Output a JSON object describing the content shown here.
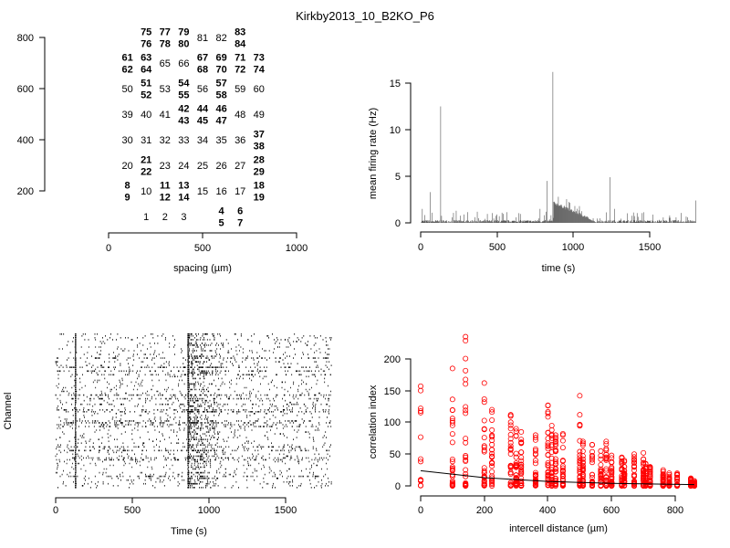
{
  "title": "Kirkby2013_10_B2KO_P6",
  "chart_data": [
    {
      "type": "scatter",
      "name": "electrode layout",
      "xlabel": "spacing (µm)",
      "xlim": [
        0,
        1000
      ],
      "xticks": [
        "0",
        "500",
        "1000"
      ],
      "ylim": [
        200,
        800
      ],
      "yticks": [
        "200",
        "400",
        "600",
        "800"
      ],
      "channels": [
        {
          "ids": [
            "1"
          ],
          "x": 200,
          "y": 100
        },
        {
          "ids": [
            "2"
          ],
          "x": 300,
          "y": 100
        },
        {
          "ids": [
            "3"
          ],
          "x": 400,
          "y": 100
        },
        {
          "ids": [
            "4",
            "5"
          ],
          "x": 600,
          "y": 100
        },
        {
          "ids": [
            "6",
            "7"
          ],
          "x": 700,
          "y": 100
        },
        {
          "ids": [
            "8",
            "9"
          ],
          "x": 100,
          "y": 200
        },
        {
          "ids": [
            "10"
          ],
          "x": 200,
          "y": 200
        },
        {
          "ids": [
            "11",
            "12"
          ],
          "x": 300,
          "y": 200
        },
        {
          "ids": [
            "13",
            "14"
          ],
          "x": 400,
          "y": 200
        },
        {
          "ids": [
            "15"
          ],
          "x": 500,
          "y": 200
        },
        {
          "ids": [
            "16"
          ],
          "x": 600,
          "y": 200
        },
        {
          "ids": [
            "17"
          ],
          "x": 700,
          "y": 200
        },
        {
          "ids": [
            "18",
            "19"
          ],
          "x": 800,
          "y": 200
        },
        {
          "ids": [
            "20"
          ],
          "x": 100,
          "y": 300
        },
        {
          "ids": [
            "21",
            "22"
          ],
          "x": 200,
          "y": 300
        },
        {
          "ids": [
            "23"
          ],
          "x": 300,
          "y": 300
        },
        {
          "ids": [
            "24"
          ],
          "x": 400,
          "y": 300
        },
        {
          "ids": [
            "25"
          ],
          "x": 500,
          "y": 300
        },
        {
          "ids": [
            "26"
          ],
          "x": 600,
          "y": 300
        },
        {
          "ids": [
            "27"
          ],
          "x": 700,
          "y": 300
        },
        {
          "ids": [
            "28",
            "29"
          ],
          "x": 800,
          "y": 300
        },
        {
          "ids": [
            "30"
          ],
          "x": 100,
          "y": 400
        },
        {
          "ids": [
            "31"
          ],
          "x": 200,
          "y": 400
        },
        {
          "ids": [
            "32"
          ],
          "x": 300,
          "y": 400
        },
        {
          "ids": [
            "33"
          ],
          "x": 400,
          "y": 400
        },
        {
          "ids": [
            "34"
          ],
          "x": 500,
          "y": 400
        },
        {
          "ids": [
            "35"
          ],
          "x": 600,
          "y": 400
        },
        {
          "ids": [
            "36"
          ],
          "x": 700,
          "y": 400
        },
        {
          "ids": [
            "37",
            "38"
          ],
          "x": 800,
          "y": 400
        },
        {
          "ids": [
            "39"
          ],
          "x": 100,
          "y": 500
        },
        {
          "ids": [
            "40"
          ],
          "x": 200,
          "y": 500
        },
        {
          "ids": [
            "41"
          ],
          "x": 300,
          "y": 500
        },
        {
          "ids": [
            "42",
            "43"
          ],
          "x": 400,
          "y": 500
        },
        {
          "ids": [
            "44",
            "45"
          ],
          "x": 500,
          "y": 500
        },
        {
          "ids": [
            "46",
            "47"
          ],
          "x": 600,
          "y": 500
        },
        {
          "ids": [
            "48"
          ],
          "x": 700,
          "y": 500
        },
        {
          "ids": [
            "49"
          ],
          "x": 800,
          "y": 500
        },
        {
          "ids": [
            "50"
          ],
          "x": 100,
          "y": 600
        },
        {
          "ids": [
            "51",
            "52"
          ],
          "x": 200,
          "y": 600
        },
        {
          "ids": [
            "53"
          ],
          "x": 300,
          "y": 600
        },
        {
          "ids": [
            "54",
            "55"
          ],
          "x": 400,
          "y": 600
        },
        {
          "ids": [
            "56"
          ],
          "x": 500,
          "y": 600
        },
        {
          "ids": [
            "57",
            "58"
          ],
          "x": 600,
          "y": 600
        },
        {
          "ids": [
            "59"
          ],
          "x": 700,
          "y": 600
        },
        {
          "ids": [
            "60"
          ],
          "x": 800,
          "y": 600
        },
        {
          "ids": [
            "61",
            "62"
          ],
          "x": 100,
          "y": 700
        },
        {
          "ids": [
            "63",
            "64"
          ],
          "x": 200,
          "y": 700
        },
        {
          "ids": [
            "65"
          ],
          "x": 300,
          "y": 700
        },
        {
          "ids": [
            "66"
          ],
          "x": 400,
          "y": 700
        },
        {
          "ids": [
            "67",
            "68"
          ],
          "x": 500,
          "y": 700
        },
        {
          "ids": [
            "69",
            "70"
          ],
          "x": 600,
          "y": 700
        },
        {
          "ids": [
            "71",
            "72"
          ],
          "x": 700,
          "y": 700
        },
        {
          "ids": [
            "73",
            "74"
          ],
          "x": 800,
          "y": 700
        },
        {
          "ids": [
            "75",
            "76"
          ],
          "x": 200,
          "y": 800
        },
        {
          "ids": [
            "77",
            "78"
          ],
          "x": 300,
          "y": 800
        },
        {
          "ids": [
            "79",
            "80"
          ],
          "x": 400,
          "y": 800
        },
        {
          "ids": [
            "81"
          ],
          "x": 500,
          "y": 800
        },
        {
          "ids": [
            "82"
          ],
          "x": 600,
          "y": 800
        },
        {
          "ids": [
            "83",
            "84"
          ],
          "x": 700,
          "y": 800
        }
      ]
    },
    {
      "type": "area",
      "name": "mean firing rate",
      "xlabel": "time (s)",
      "ylabel": "mean firing rate (Hz)",
      "xlim": [
        0,
        1800
      ],
      "xticks": [
        "0",
        "500",
        "1000",
        "1500"
      ],
      "ylim": [
        0,
        16
      ],
      "yticks": [
        "0",
        "5",
        "10",
        "15"
      ],
      "color": "#555555",
      "peaks": [
        [
          10,
          1.5
        ],
        [
          60,
          3.3
        ],
        [
          130,
          12.5
        ],
        [
          230,
          1.3
        ],
        [
          780,
          1.5
        ],
        [
          825,
          4.5
        ],
        [
          865,
          16.2
        ],
        [
          900,
          2.8
        ],
        [
          1240,
          4.9
        ],
        [
          1270,
          1.5
        ],
        [
          1800,
          2.4
        ]
      ],
      "baseline": 0.3,
      "decay": {
        "start": 870,
        "end": 1150,
        "from": 2.0
      }
    },
    {
      "type": "raster",
      "name": "spike raster",
      "xlabel": "Time (s)",
      "ylabel": "Channel",
      "xlim": [
        0,
        1800
      ],
      "xticks": [
        "0",
        "500",
        "1000",
        "1500"
      ],
      "channels": 84,
      "bursts": [
        130,
        865
      ]
    },
    {
      "type": "scatter",
      "name": "correlation vs distance",
      "xlabel": "intercell distance (µm)",
      "ylabel": "correlation index",
      "xlim": [
        0,
        860
      ],
      "xticks": [
        "0",
        "200",
        "400",
        "600",
        "800"
      ],
      "ylim": [
        0,
        240
      ],
      "yticks": [
        "0",
        "50",
        "100",
        "150",
        "200"
      ],
      "point_color": "#ff0000",
      "distances": [
        0,
        100,
        141,
        200,
        224,
        283,
        300,
        316,
        361,
        400,
        412,
        424,
        447,
        500,
        510,
        539,
        566,
        583,
        600,
        632,
        640,
        671,
        700,
        707,
        721,
        762,
        781,
        806,
        849,
        860
      ],
      "max_values": [
        157,
        185,
        235,
        162,
        120,
        112,
        90,
        85,
        80,
        127,
        95,
        80,
        82,
        142,
        70,
        65,
        55,
        70,
        48,
        45,
        40,
        50,
        52,
        35,
        30,
        25,
        20,
        20,
        12,
        8
      ],
      "fit": [
        [
          0,
          24
        ],
        [
          200,
          13
        ],
        [
          400,
          7
        ],
        [
          600,
          4
        ],
        [
          860,
          2
        ]
      ],
      "fit_color": "#000000"
    }
  ]
}
